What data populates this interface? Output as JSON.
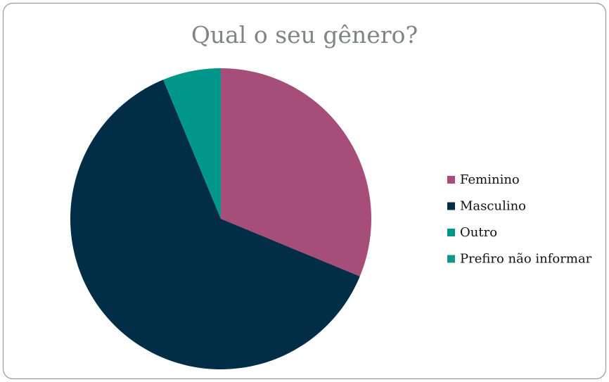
{
  "chart_data": {
    "type": "pie",
    "title": "Qual o seu gênero?",
    "categories": [
      "Feminino",
      "Masculino",
      "Outro",
      "Prefiro não informar"
    ],
    "values": [
      5,
      10,
      1,
      0
    ],
    "colors": [
      "#a64d79",
      "#022d47",
      "#00968a",
      "#15968a"
    ],
    "legend": "right"
  }
}
